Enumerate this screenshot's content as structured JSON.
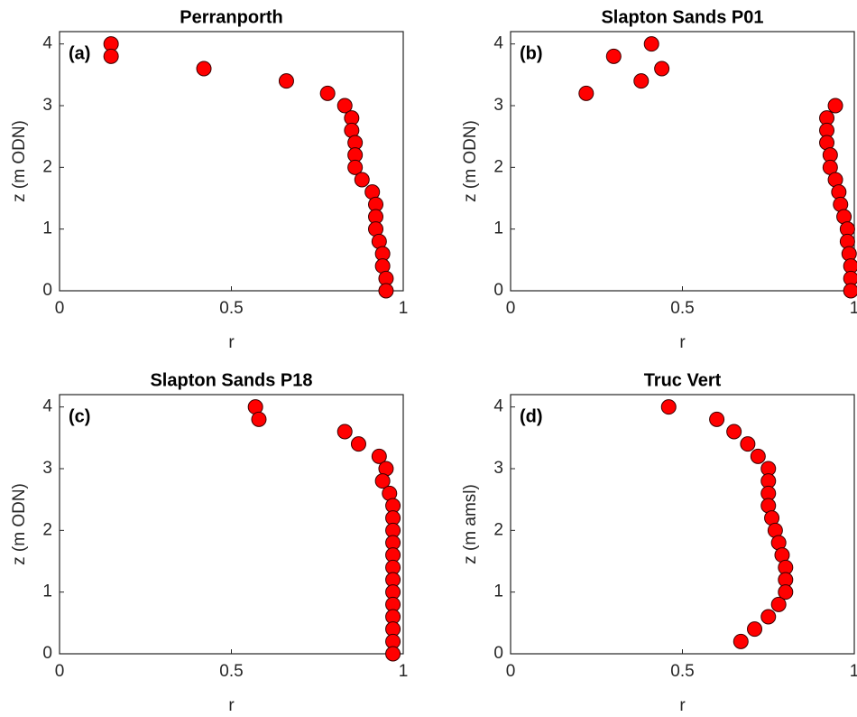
{
  "chart_data": [
    {
      "type": "scatter",
      "title": "Perranporth",
      "annotation": "(a)",
      "xlabel": "r",
      "ylabel": "z (m ODN)",
      "color": "#ff0000",
      "edgecolor": "#3a0000",
      "x": [
        0.15,
        0.15,
        0.42,
        0.66,
        0.78,
        0.83,
        0.85,
        0.85,
        0.86,
        0.86,
        0.86,
        0.88,
        0.91,
        0.92,
        0.92,
        0.92,
        0.93,
        0.94,
        0.94,
        0.95,
        0.95
      ],
      "y": [
        4.0,
        3.8,
        3.6,
        3.4,
        3.2,
        3.0,
        2.8,
        2.6,
        2.4,
        2.2,
        2.0,
        1.8,
        1.6,
        1.4,
        1.2,
        1.0,
        0.8,
        0.6,
        0.4,
        0.2,
        0
      ],
      "xlim": [
        0,
        1
      ],
      "ylim": [
        0,
        4.2
      ],
      "xticks": [
        0,
        0.5,
        1
      ],
      "yticks": [
        0,
        1,
        2,
        3,
        4
      ]
    },
    {
      "type": "scatter",
      "title": "Slapton Sands P01",
      "annotation": "(b)",
      "xlabel": "r",
      "ylabel": "z (m ODN)",
      "color": "#ff0000",
      "edgecolor": "#3a0000",
      "x": [
        0.41,
        0.3,
        0.44,
        0.38,
        0.22,
        0.945,
        0.92,
        0.92,
        0.92,
        0.93,
        0.93,
        0.945,
        0.955,
        0.96,
        0.97,
        0.98,
        0.98,
        0.985,
        0.99,
        0.99,
        0.99
      ],
      "y": [
        4.0,
        3.8,
        3.6,
        3.4,
        3.2,
        3.0,
        2.8,
        2.6,
        2.4,
        2.2,
        2.0,
        1.8,
        1.6,
        1.4,
        1.2,
        1.0,
        0.8,
        0.6,
        0.4,
        0.2,
        0
      ],
      "xlim": [
        0,
        1
      ],
      "ylim": [
        0,
        4.2
      ],
      "xticks": [
        0,
        0.5,
        1
      ],
      "yticks": [
        0,
        1,
        2,
        3,
        4
      ]
    },
    {
      "type": "scatter",
      "title": "Slapton Sands P18",
      "annotation": "(c)",
      "xlabel": "r",
      "ylabel": "z (m ODN)",
      "color": "#ff0000",
      "edgecolor": "#3a0000",
      "x": [
        0.57,
        0.58,
        0.83,
        0.87,
        0.93,
        0.95,
        0.94,
        0.96,
        0.97,
        0.97,
        0.97,
        0.97,
        0.97,
        0.97,
        0.97,
        0.97,
        0.97,
        0.97,
        0.97,
        0.97,
        0.97
      ],
      "y": [
        4.0,
        3.8,
        3.6,
        3.4,
        3.2,
        3.0,
        2.8,
        2.6,
        2.4,
        2.2,
        2.0,
        1.8,
        1.6,
        1.4,
        1.2,
        1.0,
        0.8,
        0.6,
        0.4,
        0.2,
        0
      ],
      "xlim": [
        0,
        1
      ],
      "ylim": [
        0,
        4.2
      ],
      "xticks": [
        0,
        0.5,
        1
      ],
      "yticks": [
        0,
        1,
        2,
        3,
        4
      ]
    },
    {
      "type": "scatter",
      "title": "Truc Vert",
      "annotation": "(d)",
      "xlabel": "r",
      "ylabel": "z (m amsl)",
      "color": "#ff0000",
      "edgecolor": "#3a0000",
      "x": [
        0.46,
        0.6,
        0.65,
        0.69,
        0.72,
        0.75,
        0.75,
        0.75,
        0.75,
        0.76,
        0.77,
        0.78,
        0.79,
        0.8,
        0.8,
        0.8,
        0.78,
        0.75,
        0.71,
        0.67
      ],
      "y": [
        4.0,
        3.8,
        3.6,
        3.4,
        3.2,
        3.0,
        2.8,
        2.6,
        2.4,
        2.2,
        2.0,
        1.8,
        1.6,
        1.4,
        1.2,
        1.0,
        0.8,
        0.6,
        0.4,
        0.2
      ],
      "xlim": [
        0,
        1
      ],
      "ylim": [
        0,
        4.2
      ],
      "xticks": [
        0,
        0.5,
        1
      ],
      "yticks": [
        0,
        1,
        2,
        3,
        4
      ]
    }
  ]
}
